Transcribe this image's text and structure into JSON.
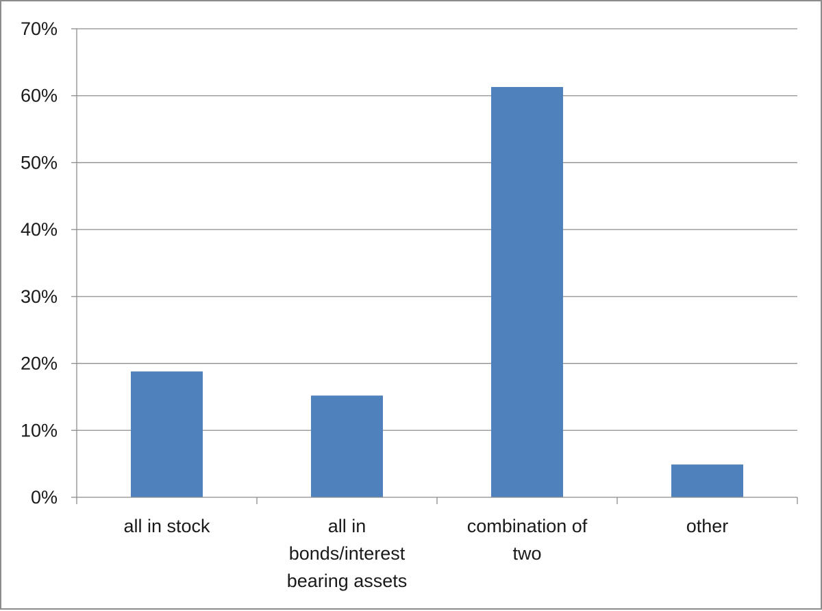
{
  "chart_data": {
    "type": "bar",
    "title": "",
    "xlabel": "",
    "ylabel": "",
    "categories": [
      [
        "all in stock"
      ],
      [
        "all in",
        "bonds/interest",
        "bearing assets"
      ],
      [
        "combination of",
        "two"
      ],
      [
        "other"
      ]
    ],
    "values": [
      0.188,
      0.152,
      0.613,
      0.049
    ],
    "ylim": [
      0,
      0.7
    ],
    "yticks": [
      0,
      0.1,
      0.2,
      0.3,
      0.4,
      0.5,
      0.6,
      0.7
    ],
    "ytick_labels": [
      "0%",
      "10%",
      "20%",
      "30%",
      "40%",
      "50%",
      "60%",
      "70%"
    ],
    "grid": true,
    "legend": "none",
    "bar_color": "#4f81bd"
  }
}
